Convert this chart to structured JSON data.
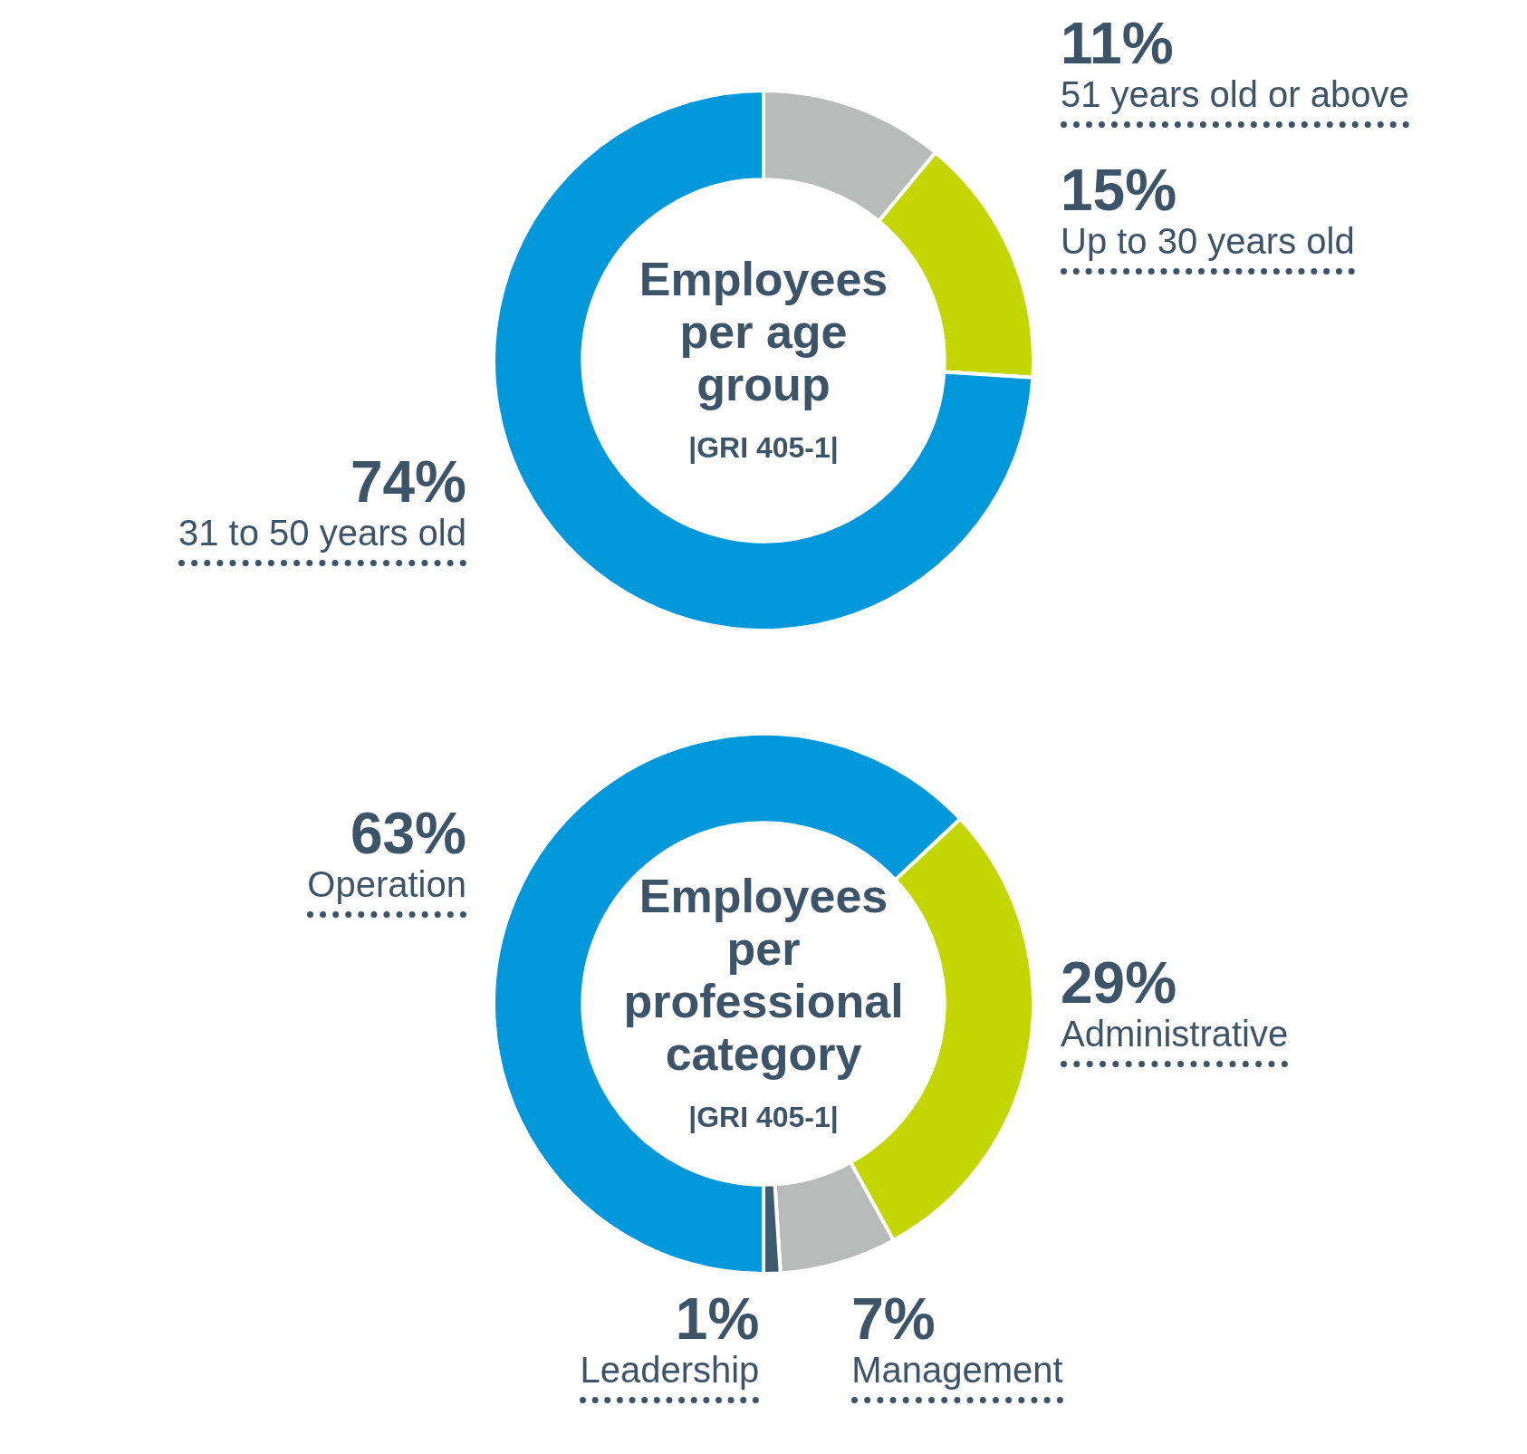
{
  "chart_data": [
    {
      "type": "donut",
      "title": "Employees per age group",
      "subtitle": "|GRI 405-1|",
      "categories": [
        "51 years old or above",
        "Up to 30 years old",
        "31 to 50 years old"
      ],
      "values": [
        11,
        15,
        74
      ],
      "colors": [
        "#b9bbba",
        "#c3d600",
        "#0098da"
      ],
      "value_labels": [
        "11%",
        "15%",
        "74%"
      ]
    },
    {
      "type": "donut",
      "title": "Employees per professional category",
      "subtitle": "|GRI 405-1|",
      "categories": [
        "Operation",
        "Administrative",
        "Management",
        "Leadership"
      ],
      "values": [
        63,
        29,
        7,
        1
      ],
      "colors": [
        "#0098da",
        "#c3d600",
        "#b9bbba",
        "#3d5a6e"
      ],
      "value_labels": [
        "63%",
        "29%",
        "7%",
        "1%"
      ]
    }
  ]
}
